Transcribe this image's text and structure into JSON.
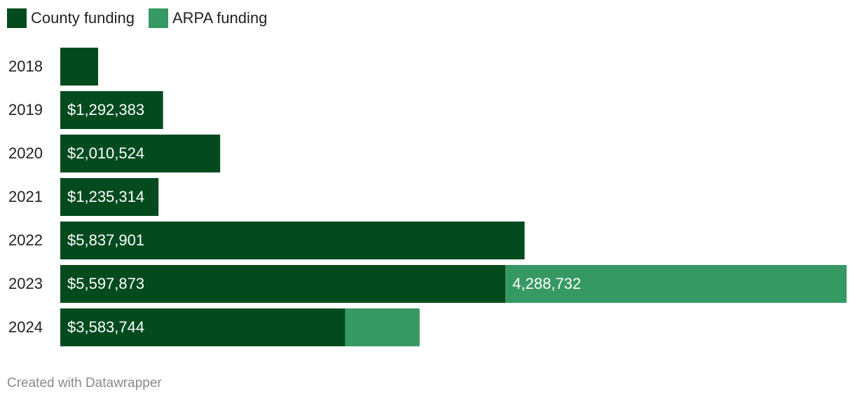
{
  "chart_data": {
    "type": "stacked-bar-horizontal",
    "categories": [
      "2018",
      "2019",
      "2020",
      "2021",
      "2022",
      "2023",
      "2024"
    ],
    "series": [
      {
        "name": "County funding",
        "color": "#034b1f",
        "values": [
          476000,
          1292383,
          2010524,
          1235314,
          5837901,
          5597873,
          3583744
        ],
        "value_labels": [
          null,
          "$1,292,383",
          "$2,010,524",
          "$1,235,314",
          "$5,837,901",
          "$5,597,873",
          "$3,583,744"
        ]
      },
      {
        "name": "ARPA funding",
        "color": "#369963",
        "values": [
          null,
          null,
          null,
          null,
          null,
          4288732,
          935000
        ],
        "value_labels": [
          null,
          null,
          null,
          null,
          null,
          "4,288,732",
          null
        ]
      }
    ],
    "credit": "Created with Datawrapper"
  }
}
